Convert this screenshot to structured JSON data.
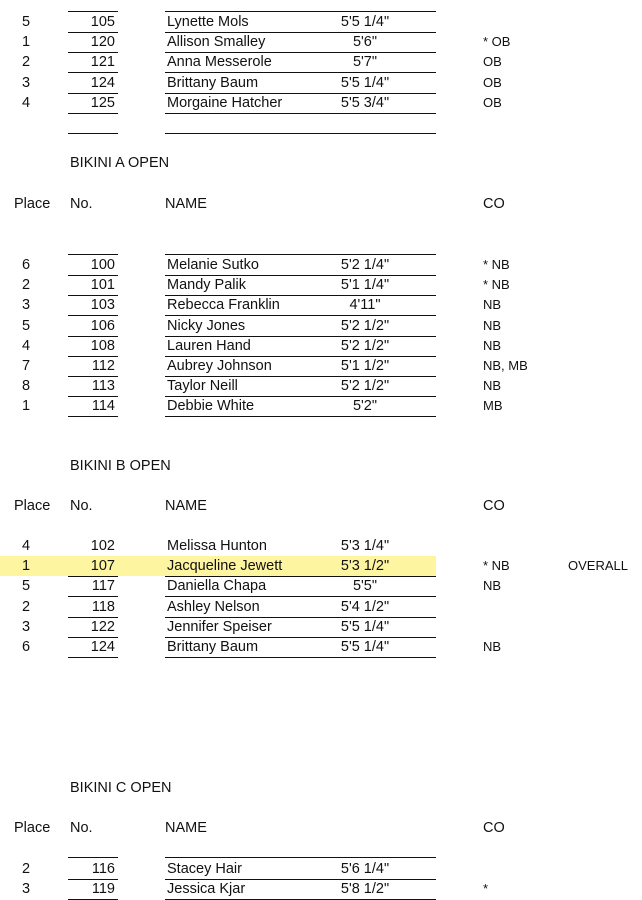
{
  "sections": [
    {
      "title": "",
      "rows": [
        {
          "place": "5",
          "no": "105",
          "name": "Lynette Mols",
          "height": "5'5 1/4\"",
          "co": ""
        },
        {
          "place": "1",
          "no": "120",
          "name": "Allison Smalley",
          "height": "5'6\"",
          "co": "* OB"
        },
        {
          "place": "2",
          "no": "121",
          "name": "Anna Messerole",
          "height": "5'7\"",
          "co": "OB"
        },
        {
          "place": "3",
          "no": "124",
          "name": "Brittany Baum",
          "height": "5'5 1/4\"",
          "co": "OB"
        },
        {
          "place": "4",
          "no": "125",
          "name": "Morgaine Hatcher",
          "height": "5'5 3/4\"",
          "co": "OB"
        },
        {
          "place": "",
          "no": "",
          "name": "",
          "height": "",
          "co": ""
        }
      ]
    },
    {
      "title": "BIKINI A OPEN",
      "headers": {
        "place": "Place",
        "no": "No.",
        "name": "NAME",
        "co": "CO"
      },
      "rows": [
        {
          "place": "6",
          "no": "100",
          "name": "Melanie Sutko",
          "height": "5'2 1/4\"",
          "co": "* NB"
        },
        {
          "place": "2",
          "no": "101",
          "name": "Mandy Palik",
          "height": "5'1 1/4\"",
          "co": "* NB"
        },
        {
          "place": "3",
          "no": "103",
          "name": "Rebecca Franklin",
          "height": "4'11\"",
          "co": "NB"
        },
        {
          "place": "5",
          "no": "106",
          "name": "Nicky Jones",
          "height": "5'2 1/2\"",
          "co": "NB"
        },
        {
          "place": "4",
          "no": "108",
          "name": "Lauren Hand",
          "height": "5'2 1/2\"",
          "co": "NB"
        },
        {
          "place": "7",
          "no": "112",
          "name": "Aubrey Johnson",
          "height": "5'1 1/2\"",
          "co": "NB, MB"
        },
        {
          "place": "8",
          "no": "113",
          "name": "Taylor Neill",
          "height": "5'2 1/2\"",
          "co": "NB"
        },
        {
          "place": "1",
          "no": "114",
          "name": "Debbie White",
          "height": "5'2\"",
          "co": "MB"
        }
      ]
    },
    {
      "title": "BIKINI B OPEN",
      "headers": {
        "place": "Place",
        "no": "No.",
        "name": "NAME",
        "co": "CO"
      },
      "rows": [
        {
          "place": "4",
          "no": "102",
          "name": "Melissa Hunton",
          "height": "5'3 1/4\"",
          "co": ""
        },
        {
          "place": "1",
          "no": "107",
          "name": "Jacqueline Jewett",
          "height": "5'3 1/2\"",
          "co": "* NB",
          "overall": "OVERALL",
          "highlight": true
        },
        {
          "place": "5",
          "no": "117",
          "name": "Daniella Chapa",
          "height": "5'5\"",
          "co": "NB"
        },
        {
          "place": "2",
          "no": "118",
          "name": "Ashley Nelson",
          "height": "5'4 1/2\"",
          "co": ""
        },
        {
          "place": "3",
          "no": "122",
          "name": "Jennifer Speiser",
          "height": "5'5 1/4\"",
          "co": ""
        },
        {
          "place": "6",
          "no": "124",
          "name": "Brittany Baum",
          "height": "5'5 1/4\"",
          "co": "NB"
        }
      ]
    },
    {
      "title": "BIKINI C OPEN",
      "headers": {
        "place": "Place",
        "no": "No.",
        "name": "NAME",
        "co": "CO"
      },
      "rows": [
        {
          "place": "2",
          "no": "116",
          "name": "Stacey Hair",
          "height": "5'6 1/4\"",
          "co": ""
        },
        {
          "place": "3",
          "no": "119",
          "name": "Jessica Kjar",
          "height": "5'8 1/2\"",
          "co": "*"
        }
      ]
    }
  ],
  "colors": {
    "highlight": "#fdf5a0"
  }
}
